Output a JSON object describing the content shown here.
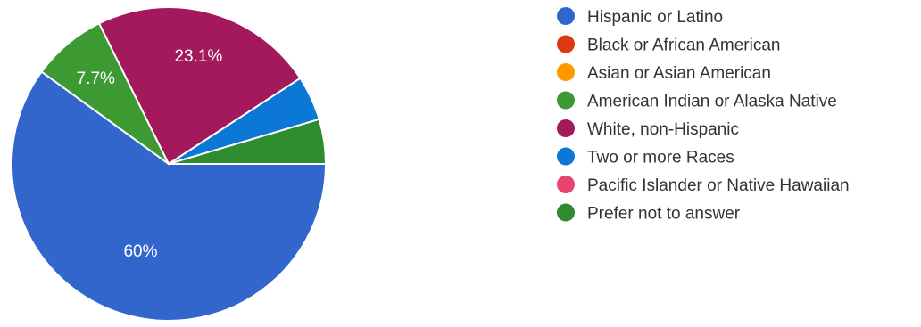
{
  "chart_data": {
    "type": "pie",
    "title": "",
    "legend_position": "right",
    "categories": [
      "Hispanic or Latino",
      "Black or African American",
      "Asian or Asian American",
      "American Indian or Alaska Native",
      "White, non-Hispanic",
      "Two or more Races",
      "Pacific Islander or Native Hawaiian",
      "Prefer not to answer"
    ],
    "values": [
      60,
      0,
      0,
      7.7,
      23.1,
      4.6,
      0,
      4.6
    ],
    "colors": [
      "#3366cc",
      "#dc3912",
      "#ff9900",
      "#3d9a33",
      "#a3195b",
      "#0a78d4",
      "#e8456e",
      "#2e8b2e"
    ],
    "slice_labels": [
      "60%",
      "",
      "",
      "7.7%",
      "23.1%",
      "",
      "",
      ""
    ]
  }
}
